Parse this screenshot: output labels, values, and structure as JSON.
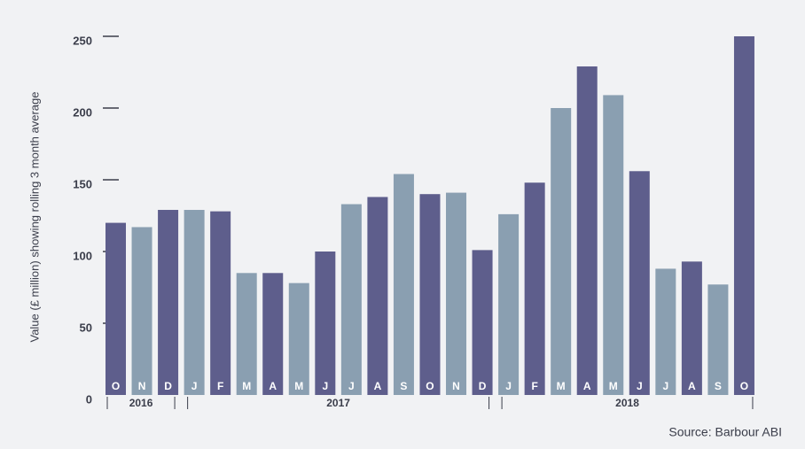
{
  "chart_data": {
    "type": "bar",
    "y_label": "Value (£ million) showing rolling 3 month average",
    "source": "Source: Barbour ABI",
    "categories": [
      "O",
      "N",
      "D",
      "J",
      "F",
      "M",
      "A",
      "M",
      "J",
      "J",
      "A",
      "S",
      "O",
      "N",
      "D",
      "J",
      "F",
      "M",
      "A",
      "M",
      "J",
      "J",
      "A",
      "S",
      "O"
    ],
    "values": [
      120,
      117,
      129,
      129,
      128,
      85,
      85,
      78,
      100,
      133,
      138,
      154,
      140,
      141,
      101,
      126,
      148,
      200,
      229,
      209,
      156,
      88,
      93,
      77,
      250
    ],
    "years": [
      "2016",
      "2017",
      "2018"
    ],
    "colors": [
      "#5e5e8c",
      "#8a9fb1"
    ],
    "ylim": [
      0,
      250
    ],
    "yticks": [
      0,
      50,
      100,
      150,
      200,
      250
    ],
    "grid": false
  }
}
